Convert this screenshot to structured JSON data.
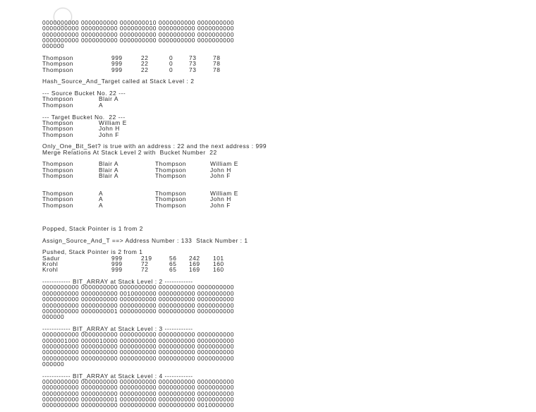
{
  "lines": [
    {
      "kind": "text",
      "text": "0000000000 0000000000 0000000010 0000000000 0000000000"
    },
    {
      "kind": "text",
      "text": "0000000000 0000000000 0000000000 0000000000 0000000000"
    },
    {
      "kind": "text",
      "text": "0000000000 0000000000 0000000000 0000000000 0000000000"
    },
    {
      "kind": "text",
      "text": "0000000000 0000000000 0000000000 0000000000 0000000000"
    },
    {
      "kind": "text",
      "text": "000000"
    },
    {
      "kind": "text",
      "text": ""
    },
    {
      "kind": "t6",
      "cols": [
        "Thompson",
        "999",
        "22",
        "0",
        "73",
        "78"
      ]
    },
    {
      "kind": "t6",
      "cols": [
        "Thompson",
        "999",
        "22",
        "0",
        "73",
        "78"
      ]
    },
    {
      "kind": "t6",
      "cols": [
        "Thompson",
        "999",
        "22",
        "0",
        "73",
        "78"
      ]
    },
    {
      "kind": "text",
      "text": ""
    },
    {
      "kind": "text",
      "text": "Hash_Source_And_Target called at Stack Level : 2"
    },
    {
      "kind": "text",
      "text": ""
    },
    {
      "kind": "text",
      "text": "--- Source Bucket No. 22 ---"
    },
    {
      "kind": "t2",
      "cols": [
        "Thompson",
        "Blair A"
      ]
    },
    {
      "kind": "t2",
      "cols": [
        "Thompson",
        "A"
      ]
    },
    {
      "kind": "text",
      "text": ""
    },
    {
      "kind": "text",
      "text": "--- Target Bucket No.  22 ---"
    },
    {
      "kind": "t2",
      "cols": [
        "Thompson",
        "William E"
      ]
    },
    {
      "kind": "t2",
      "cols": [
        "Thompson",
        "John H"
      ]
    },
    {
      "kind": "t2",
      "cols": [
        "Thompson",
        "John F"
      ]
    },
    {
      "kind": "text",
      "text": ""
    },
    {
      "kind": "text",
      "text": "Only_One_Bit_Set? is true with an address : 22 and the next address : 999"
    },
    {
      "kind": "text",
      "text": "Merge Relations At Stack Level 2 with  Bucket Number  22"
    },
    {
      "kind": "text",
      "text": ""
    },
    {
      "kind": "t4",
      "cols": [
        "Thompson",
        "Blair A",
        "Thompson",
        "William E"
      ]
    },
    {
      "kind": "t4",
      "cols": [
        "Thompson",
        "Blair A",
        "Thompson",
        "John H"
      ]
    },
    {
      "kind": "t4",
      "cols": [
        "Thompson",
        "Blair A",
        "Thompson",
        "John F"
      ]
    },
    {
      "kind": "text",
      "text": ""
    },
    {
      "kind": "text",
      "text": ""
    },
    {
      "kind": "t4",
      "cols": [
        "Thompson",
        "A",
        "Thompson",
        "William E"
      ]
    },
    {
      "kind": "t4",
      "cols": [
        "Thompson",
        "A",
        "Thompson",
        "John H"
      ]
    },
    {
      "kind": "t4",
      "cols": [
        "Thompson",
        "A",
        "Thompson",
        "John F"
      ]
    },
    {
      "kind": "text",
      "text": ""
    },
    {
      "kind": "text",
      "text": ""
    },
    {
      "kind": "text",
      "text": ""
    },
    {
      "kind": "text",
      "text": "Popped, Stack Pointer is 1 from 2"
    },
    {
      "kind": "text",
      "text": ""
    },
    {
      "kind": "text",
      "text": "Assign_Source_And_T ==> Address Number : 133  Stack Number : 1"
    },
    {
      "kind": "text",
      "text": ""
    },
    {
      "kind": "text",
      "text": "Pushed, Stack Pointer is 2 from 1"
    },
    {
      "kind": "t6",
      "cols": [
        "Sadur",
        "999",
        "219",
        "56",
        "242",
        "101"
      ]
    },
    {
      "kind": "t6",
      "cols": [
        "Krohl",
        "999",
        "72",
        "65",
        "169",
        "160"
      ]
    },
    {
      "kind": "t6",
      "cols": [
        "Krohl",
        "999",
        "72",
        "65",
        "169",
        "160"
      ]
    },
    {
      "kind": "text",
      "text": ""
    },
    {
      "kind": "text",
      "text": "------------ BIT_ARRAY at Stack Level : 2 ------------"
    },
    {
      "kind": "text",
      "text": "0000000000 0000000000 0000000000 0000000000 0000000000"
    },
    {
      "kind": "text",
      "text": "0000000000 0000000000 0010000000 0000000000 0000000000"
    },
    {
      "kind": "text",
      "text": "0000000000 0000000000 0000000000 0000000000 0000000000"
    },
    {
      "kind": "text",
      "text": "0000000000 0000000000 0000000000 0000000000 0000000000"
    },
    {
      "kind": "text",
      "text": "0000000000 0000000001 0000000000 0000000000 0000000000"
    },
    {
      "kind": "text",
      "text": "000000"
    },
    {
      "kind": "text",
      "text": ""
    },
    {
      "kind": "text",
      "text": "------------ BIT_ARRAY at Stack Level : 3 ------------"
    },
    {
      "kind": "text",
      "text": "0000000000 0000000000 0000000000 0000000000 0000000000"
    },
    {
      "kind": "text",
      "text": "0000001000 0000010000 0000000000 0000000000 0000000000"
    },
    {
      "kind": "text",
      "text": "0000000000 0000000000 0000000000 0000000000 0000000000"
    },
    {
      "kind": "text",
      "text": "0000000000 0000000000 0000000000 0000000000 0000000000"
    },
    {
      "kind": "text",
      "text": "0000000000 0000000000 0000000000 0000000000 0000000000"
    },
    {
      "kind": "text",
      "text": "000000"
    },
    {
      "kind": "text",
      "text": ""
    },
    {
      "kind": "text",
      "text": "------------ BIT_ARRAY at Stack Level : 4 ------------"
    },
    {
      "kind": "text",
      "text": "0000000000 0000000000 0000000000 0000000000 0000000000"
    },
    {
      "kind": "text",
      "text": "0000000000 0000000000 0000000000 0000000000 0000000000"
    },
    {
      "kind": "text",
      "text": "0000000000 0000000000 0000000000 0000000000 0000000000"
    },
    {
      "kind": "text",
      "text": "0000000000 0000000001 0000000000 0000000000 0000000000"
    },
    {
      "kind": "text",
      "text": "0000000000 0000000000 0000000000 0000000000 0010000000"
    }
  ]
}
